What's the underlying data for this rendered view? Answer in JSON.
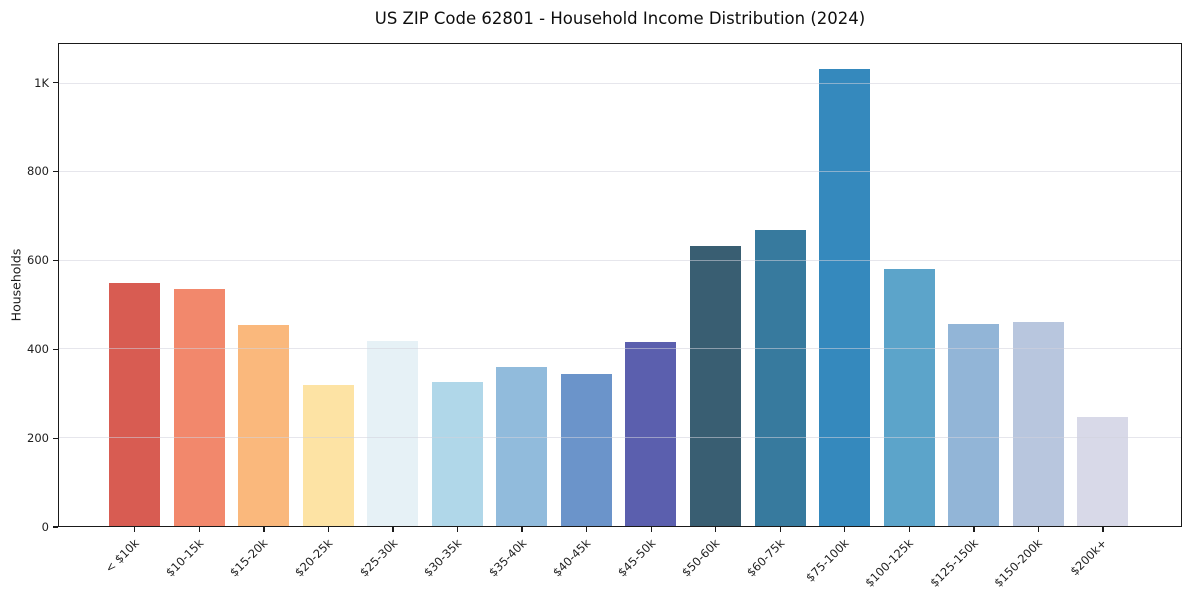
{
  "figure": {
    "title": "US ZIP Code 62801 - Household Income Distribution (2024)",
    "ylabel": "Households"
  },
  "chart_data": {
    "type": "bar",
    "title": "US ZIP Code 62801 - Household Income Distribution (2024)",
    "xlabel": "",
    "ylabel": "Households",
    "categories": [
      "< $10k",
      "$10-15k",
      "$15-20k",
      "$20-25k",
      "$25-30k",
      "$30-35k",
      "$35-40k",
      "$40-45k",
      "$45-50k",
      "$50-60k",
      "$60-75k",
      "$75-100k",
      "$100-125k",
      "$125-150k",
      "$150-200k",
      "$200k+"
    ],
    "values": [
      550,
      536,
      454,
      318,
      418,
      325,
      360,
      345,
      417,
      633,
      670,
      1034,
      581,
      458,
      461,
      246
    ],
    "bar_colors": [
      "#d85c52",
      "#f2886c",
      "#fab87c",
      "#fde3a4",
      "#e6f1f6",
      "#b0d7e9",
      "#91bbdc",
      "#6b94ca",
      "#5b5fae",
      "#395e72",
      "#377a9e",
      "#3589bd",
      "#5ca4ca",
      "#92b5d7",
      "#b8c6de",
      "#d8d9e8"
    ],
    "ylim": [
      0,
      1089
    ],
    "yticks": [
      {
        "value": 0,
        "label": "0"
      },
      {
        "value": 200,
        "label": "200"
      },
      {
        "value": 400,
        "label": "400"
      },
      {
        "value": 600,
        "label": "600"
      },
      {
        "value": 800,
        "label": "800"
      },
      {
        "value": 1000,
        "label": "1K"
      }
    ],
    "grid": "horizontal",
    "legend": "none",
    "colors": {
      "background": "#ffffff",
      "axis": "#1a1a1a",
      "gridline": "#e6e6ec",
      "text": "#1f1f1f"
    }
  }
}
